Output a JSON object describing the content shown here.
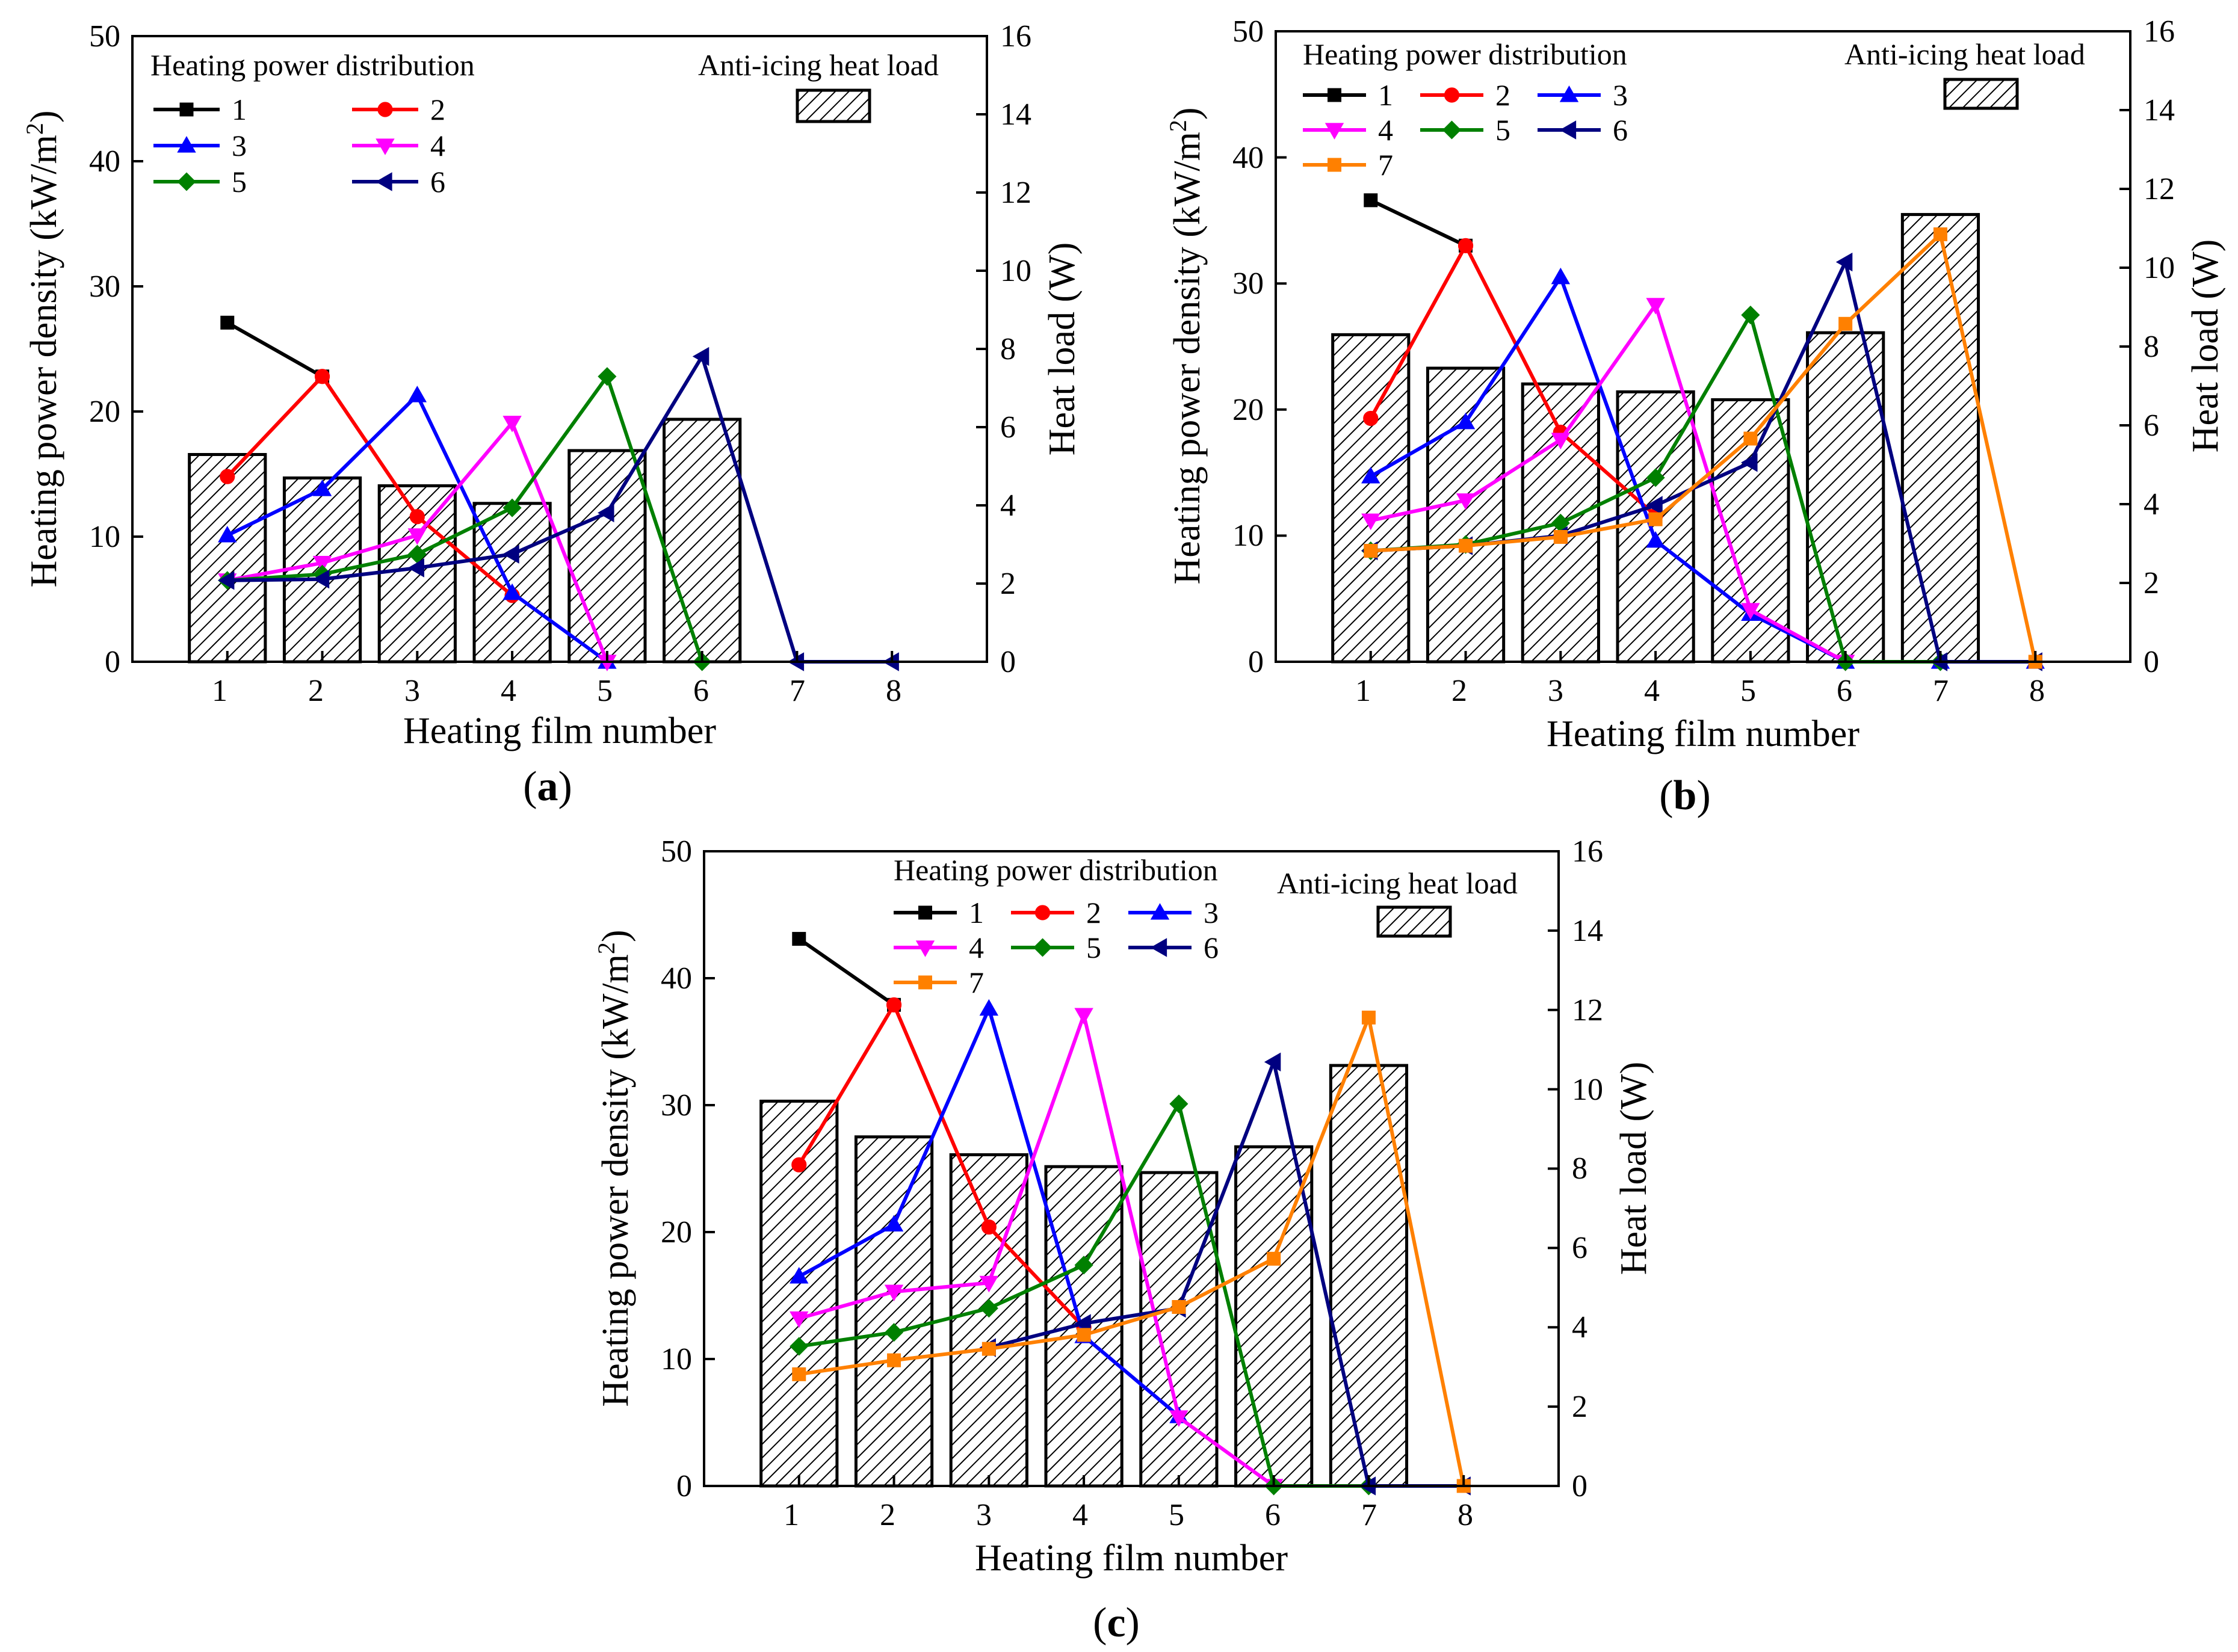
{
  "figure": {
    "hatch_color": "#000000",
    "bar_fill": "#ffffff",
    "series_colors": [
      "#000000",
      "#ff0000",
      "#0000ff",
      "#ff00ff",
      "#008000",
      "#000080",
      "#ff8000"
    ],
    "series_markers": [
      "square",
      "circle",
      "triangle-up",
      "triangle-down",
      "diamond",
      "triangle-left",
      "square"
    ]
  },
  "chart_data": [
    {
      "type": "bar+line",
      "panel_label_parts": [
        "(",
        "a",
        ")"
      ],
      "xlabel": "Heating film number",
      "ylabel": "Heating power density (kW/m",
      "ylabel_sup": "2",
      "ylabel_close": ")",
      "y2label": "Heat load (W)",
      "ylim": [
        0,
        50
      ],
      "y2lim": [
        0,
        16
      ],
      "yticks": [
        "0",
        "10",
        "20",
        "30",
        "40",
        "50"
      ],
      "y2ticks": [
        "0",
        "2",
        "4",
        "6",
        "8",
        "10",
        "12",
        "14",
        "16"
      ],
      "xticks": [
        "1",
        "2",
        "3",
        "4",
        "5",
        "6",
        "7",
        "8"
      ],
      "legend_title": "Heating power distribution",
      "bar_legend_label": "Anti-icing heat load",
      "legend_columns": 2,
      "bars": {
        "name": "Anti-icing heat load",
        "x": [
          1,
          2,
          3,
          4,
          5,
          6
        ],
        "values": [
          5.3,
          4.7,
          4.5,
          4.05,
          5.4,
          6.2
        ]
      },
      "series": [
        {
          "name": "1",
          "x": [
            1,
            2
          ],
          "values": [
            27.1,
            22.8
          ]
        },
        {
          "name": "2",
          "x": [
            1,
            2,
            3,
            4
          ],
          "values": [
            14.8,
            22.8,
            11.6,
            5.3
          ]
        },
        {
          "name": "3",
          "x": [
            1,
            2,
            3,
            4,
            5
          ],
          "values": [
            10.1,
            13.8,
            21.3,
            5.5,
            0
          ]
        },
        {
          "name": "4",
          "x": [
            1,
            2,
            3,
            4,
            5
          ],
          "values": [
            6.5,
            7.9,
            10.1,
            19.1,
            0
          ]
        },
        {
          "name": "5",
          "x": [
            1,
            2,
            3,
            4,
            5,
            6
          ],
          "values": [
            6.5,
            7.0,
            8.6,
            12.3,
            22.8,
            0
          ]
        },
        {
          "name": "6",
          "x": [
            1,
            2,
            3,
            4,
            5,
            6,
            7,
            8
          ],
          "values": [
            6.5,
            6.6,
            7.5,
            8.6,
            11.9,
            24.4,
            0,
            0
          ]
        }
      ]
    },
    {
      "type": "bar+line",
      "panel_label_parts": [
        "(",
        "b",
        ")"
      ],
      "xlabel": "Heating film number",
      "ylabel": "Heating power density (kW/m",
      "ylabel_sup": "2",
      "ylabel_close": ")",
      "y2label": "Heat load (W)",
      "ylim": [
        0,
        50
      ],
      "y2lim": [
        0,
        16
      ],
      "yticks": [
        "0",
        "10",
        "20",
        "30",
        "40",
        "50"
      ],
      "y2ticks": [
        "0",
        "2",
        "4",
        "6",
        "8",
        "10",
        "12",
        "14",
        "16"
      ],
      "xticks": [
        "1",
        "2",
        "3",
        "4",
        "5",
        "6",
        "7",
        "8"
      ],
      "legend_title": "Heating power distribution",
      "bar_legend_label": "Anti-icing heat load",
      "legend_columns": 3,
      "bars": {
        "name": "Anti-icing heat load",
        "x": [
          1,
          2,
          3,
          4,
          5,
          6,
          7
        ],
        "values": [
          8.3,
          7.45,
          7.05,
          6.85,
          6.65,
          8.35,
          11.35
        ]
      },
      "series": [
        {
          "name": "1",
          "x": [
            1,
            2
          ],
          "values": [
            36.6,
            33.0
          ]
        },
        {
          "name": "2",
          "x": [
            1,
            2,
            3,
            4
          ],
          "values": [
            19.3,
            33.0,
            18.2,
            11.6
          ]
        },
        {
          "name": "3",
          "x": [
            1,
            2,
            3,
            4,
            5,
            6,
            7,
            8
          ],
          "values": [
            14.7,
            19.0,
            30.5,
            9.6,
            3.8,
            0,
            0,
            0
          ]
        },
        {
          "name": "4",
          "x": [
            1,
            2,
            3,
            4,
            5,
            6
          ],
          "values": [
            11.2,
            12.8,
            17.6,
            28.3,
            4.1,
            0
          ]
        },
        {
          "name": "5",
          "x": [
            1,
            2,
            3,
            4,
            5,
            6,
            7
          ],
          "values": [
            8.8,
            9.3,
            11.0,
            14.6,
            27.5,
            0,
            0
          ]
        },
        {
          "name": "6",
          "x": [
            1,
            2,
            3,
            4,
            5,
            6,
            7,
            8
          ],
          "values": [
            8.8,
            9.2,
            10.0,
            12.4,
            15.8,
            31.7,
            0,
            0
          ]
        },
        {
          "name": "7",
          "x": [
            1,
            2,
            3,
            4,
            5,
            6,
            7,
            8
          ],
          "values": [
            8.8,
            9.2,
            9.9,
            11.3,
            17.7,
            26.8,
            33.9,
            0
          ]
        }
      ]
    },
    {
      "type": "bar+line",
      "panel_label_parts": [
        "(",
        "c",
        ")"
      ],
      "xlabel": "Heating film number",
      "ylabel": "Heating power density (kW/m",
      "ylabel_sup": "2",
      "ylabel_close": ")",
      "y2label": "Heat load (W)",
      "ylim": [
        0,
        50
      ],
      "y2lim": [
        0,
        16
      ],
      "yticks": [
        "0",
        "10",
        "20",
        "30",
        "40",
        "50"
      ],
      "y2ticks": [
        "0",
        "2",
        "4",
        "6",
        "8",
        "10",
        "12",
        "14",
        "16"
      ],
      "xticks": [
        "1",
        "2",
        "3",
        "4",
        "5",
        "6",
        "7",
        "8"
      ],
      "legend_title": "Heating power distribution",
      "bar_legend_label": "Anti-icing heat load",
      "legend_columns": 3,
      "bars": {
        "name": "Anti-icing heat load",
        "x": [
          1,
          2,
          3,
          4,
          5,
          6,
          7
        ],
        "values": [
          9.7,
          8.8,
          8.35,
          8.05,
          7.9,
          8.55,
          10.6
        ]
      },
      "series": [
        {
          "name": "1",
          "x": [
            1,
            2
          ],
          "values": [
            43.1,
            37.9
          ]
        },
        {
          "name": "2",
          "x": [
            1,
            2,
            3,
            4
          ],
          "values": [
            25.3,
            37.9,
            20.4,
            12.5
          ]
        },
        {
          "name": "3",
          "x": [
            1,
            2,
            3,
            4,
            5
          ],
          "values": [
            16.5,
            20.6,
            37.6,
            11.8,
            5.5
          ]
        },
        {
          "name": "4",
          "x": [
            1,
            2,
            3,
            4,
            5,
            6
          ],
          "values": [
            13.2,
            15.3,
            16.0,
            37.1,
            5.4,
            0
          ]
        },
        {
          "name": "5",
          "x": [
            1,
            2,
            3,
            4,
            5,
            6,
            7
          ],
          "values": [
            11.0,
            12.1,
            14.0,
            17.4,
            30.1,
            0,
            0
          ]
        },
        {
          "name": "6",
          "x": [
            3,
            4,
            5,
            6,
            7,
            8
          ],
          "values": [
            10.9,
            12.8,
            14.0,
            33.4,
            0,
            0
          ]
        },
        {
          "name": "7",
          "x": [
            1,
            2,
            3,
            4,
            5,
            6,
            7,
            8
          ],
          "values": [
            8.8,
            9.9,
            10.8,
            11.9,
            14.1,
            17.9,
            36.9,
            0
          ]
        }
      ]
    }
  ]
}
